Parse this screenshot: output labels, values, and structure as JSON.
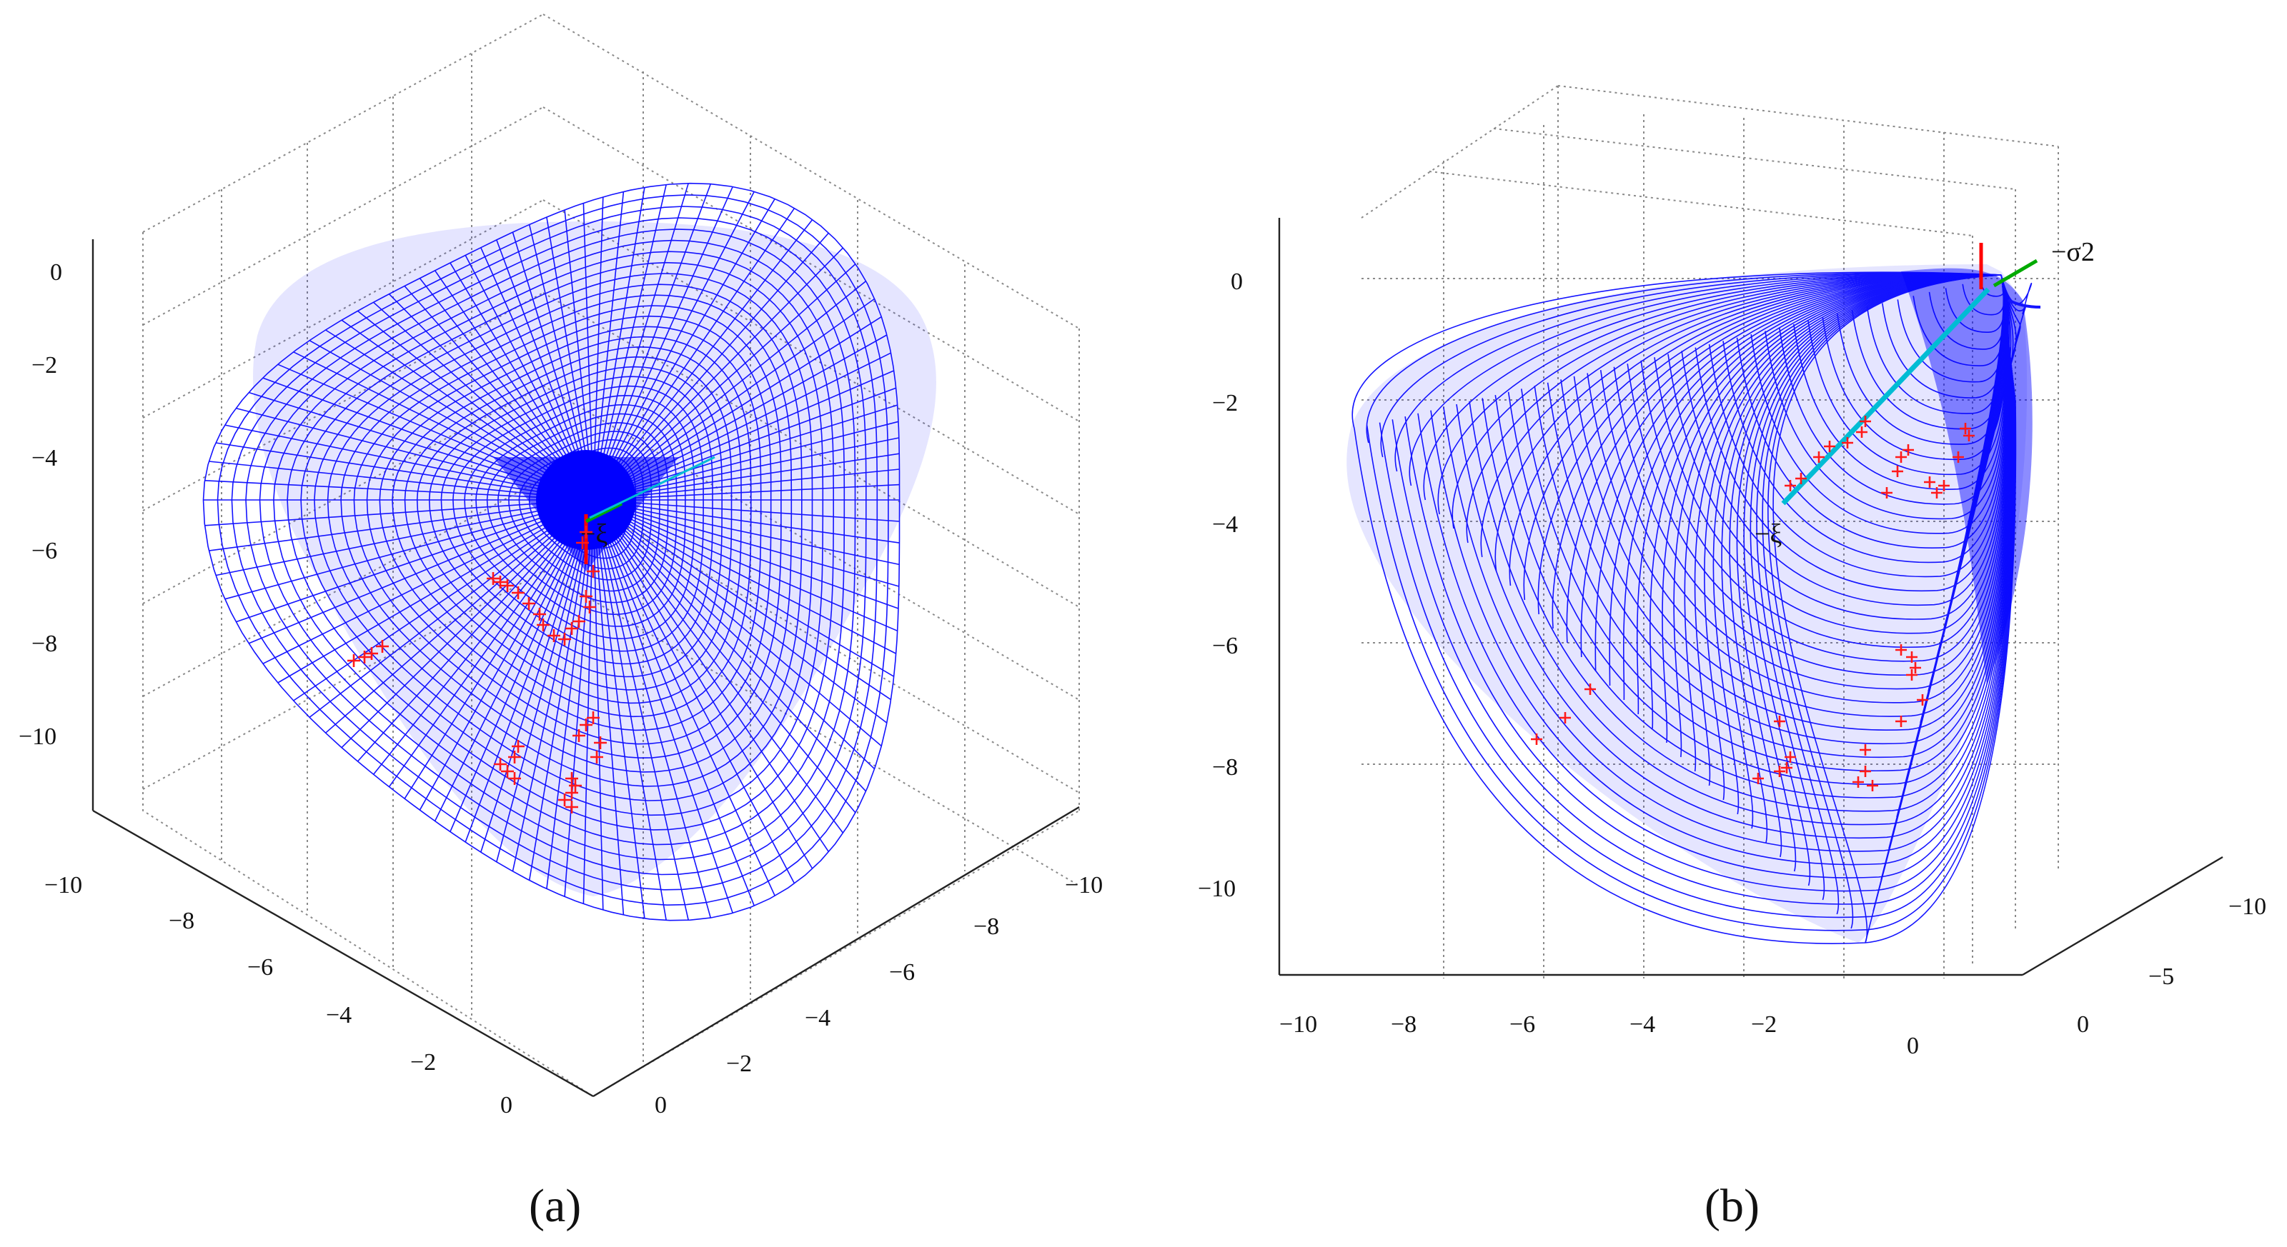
{
  "chart_data": [
    {
      "panel": "a",
      "type": "scatter",
      "caption": "(a)",
      "surface_color": "#0000ff",
      "points_color": "#ff0000",
      "axis_line_colors": [
        "#ff0000",
        "#00aa00",
        "#00bcd4"
      ],
      "axis_annotations": [
        "−ξ"
      ],
      "z_ticks": [
        "0",
        "−2",
        "−4",
        "−6",
        "−8",
        "−10"
      ],
      "x_ticks": [
        "−10",
        "−8",
        "−6",
        "−4",
        "−2",
        "0"
      ],
      "y_ticks": [
        "−10",
        "−8",
        "−6",
        "−4",
        "−2",
        "0"
      ],
      "xlim": [
        -10,
        0
      ],
      "ylim": [
        -10,
        0
      ],
      "zlim": [
        -10,
        0
      ],
      "grid": true
    },
    {
      "panel": "b",
      "type": "scatter",
      "caption": "(b)",
      "surface_color": "#0000ff",
      "points_color": "#ff0000",
      "axis_line_colors": [
        "#ff0000",
        "#00aa00",
        "#00bcd4"
      ],
      "axis_annotations": [
        "−ξ",
        "−σ2"
      ],
      "z_ticks": [
        "0",
        "−2",
        "−4",
        "−6",
        "−8",
        "−10"
      ],
      "x_ticks": [
        "−10",
        "−8",
        "−6",
        "−4",
        "−2",
        "0"
      ],
      "y_ticks": [
        "−10",
        "−5",
        "0"
      ],
      "xlim": [
        -10,
        0
      ],
      "ylim": [
        -10,
        0
      ],
      "zlim": [
        -10,
        0
      ],
      "grid": true
    }
  ]
}
